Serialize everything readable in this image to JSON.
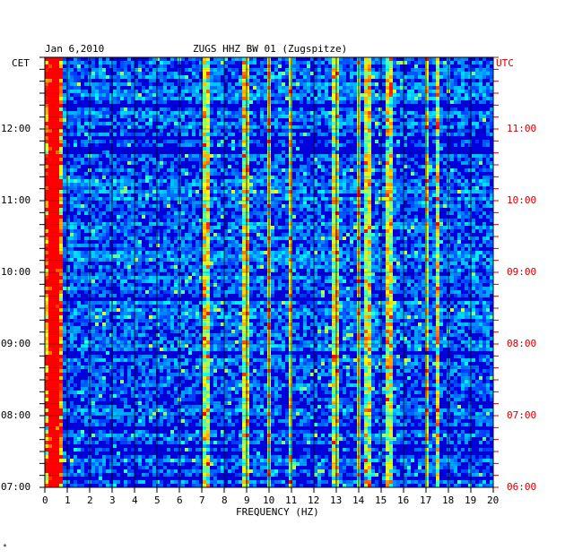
{
  "chart_data": {
    "type": "heatmap",
    "date_label": "Jan 6,2010",
    "title": "ZUGS HHZ BW 01 (Zugspitze)",
    "xlabel": "FREQUENCY (HZ)",
    "left_axis_label": "CET",
    "right_axis_label": "UTC",
    "x_range": [
      0,
      20
    ],
    "x_ticks": [
      "0",
      "1",
      "2",
      "3",
      "4",
      "5",
      "6",
      "7",
      "8",
      "9",
      "10",
      "11",
      "12",
      "13",
      "14",
      "15",
      "16",
      "17",
      "18",
      "19",
      "20"
    ],
    "y_ticks_cet": [
      "12:00",
      "11:00",
      "10:00",
      "09:00",
      "08:00",
      "07:00"
    ],
    "y_ticks_utc": [
      "11:00",
      "10:00",
      "09:00",
      "08:00",
      "07:00",
      "06:00"
    ],
    "time_range_cet": [
      "07:00",
      "13:00"
    ],
    "colormap": [
      "#000080",
      "#0000ff",
      "#00ffff",
      "#ffff00",
      "#ff0000"
    ],
    "high_energy_bands_hz": [
      0.3,
      0.5,
      7.2,
      9.0,
      10.0,
      11.0,
      13.0,
      14.0,
      14.4,
      15.4,
      17.0,
      17.5
    ]
  },
  "colors": {
    "axis": "#000000",
    "utc": "#cc0000",
    "background": "#ffffff"
  },
  "footer_mark": "*"
}
